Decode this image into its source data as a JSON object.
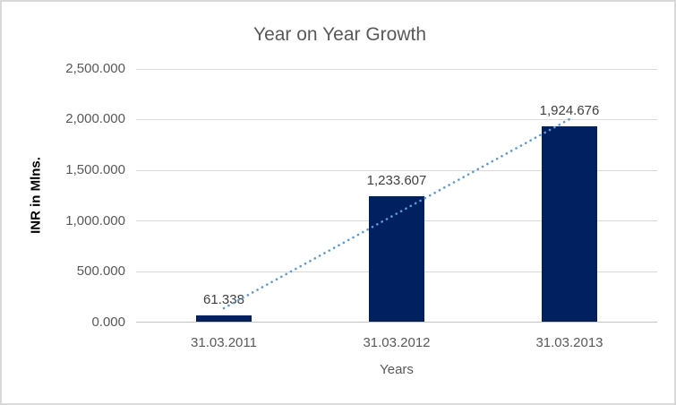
{
  "chart": {
    "title": "Year on Year Growth",
    "colors": {
      "bar": "#002060",
      "trendline": "#5b9bd5",
      "title_text": "#595959",
      "tick_text": "#595959",
      "data_label_text": "#404040",
      "gridline": "#d9d9d9",
      "border": "#d9d9d9"
    }
  },
  "chart_data": {
    "type": "bar",
    "title": "Year on Year Growth",
    "xlabel": "Years",
    "ylabel": "INR in Mlns.",
    "categories": [
      "31.03.2011",
      "31.03.2012",
      "31.03.2013"
    ],
    "values": [
      61.338,
      1233.607,
      1924.676
    ],
    "data_labels": [
      "61.338",
      "1,233.607",
      "1,924.676"
    ],
    "ylim": [
      0,
      2500
    ],
    "y_ticks": [
      "0.000",
      "500.000",
      "1,000.000",
      "1,500.000",
      "2,000.000",
      "2,500.000"
    ],
    "grid": true,
    "legend": "none",
    "trendline": {
      "type": "linear",
      "style": "dotted",
      "series": "values"
    }
  }
}
